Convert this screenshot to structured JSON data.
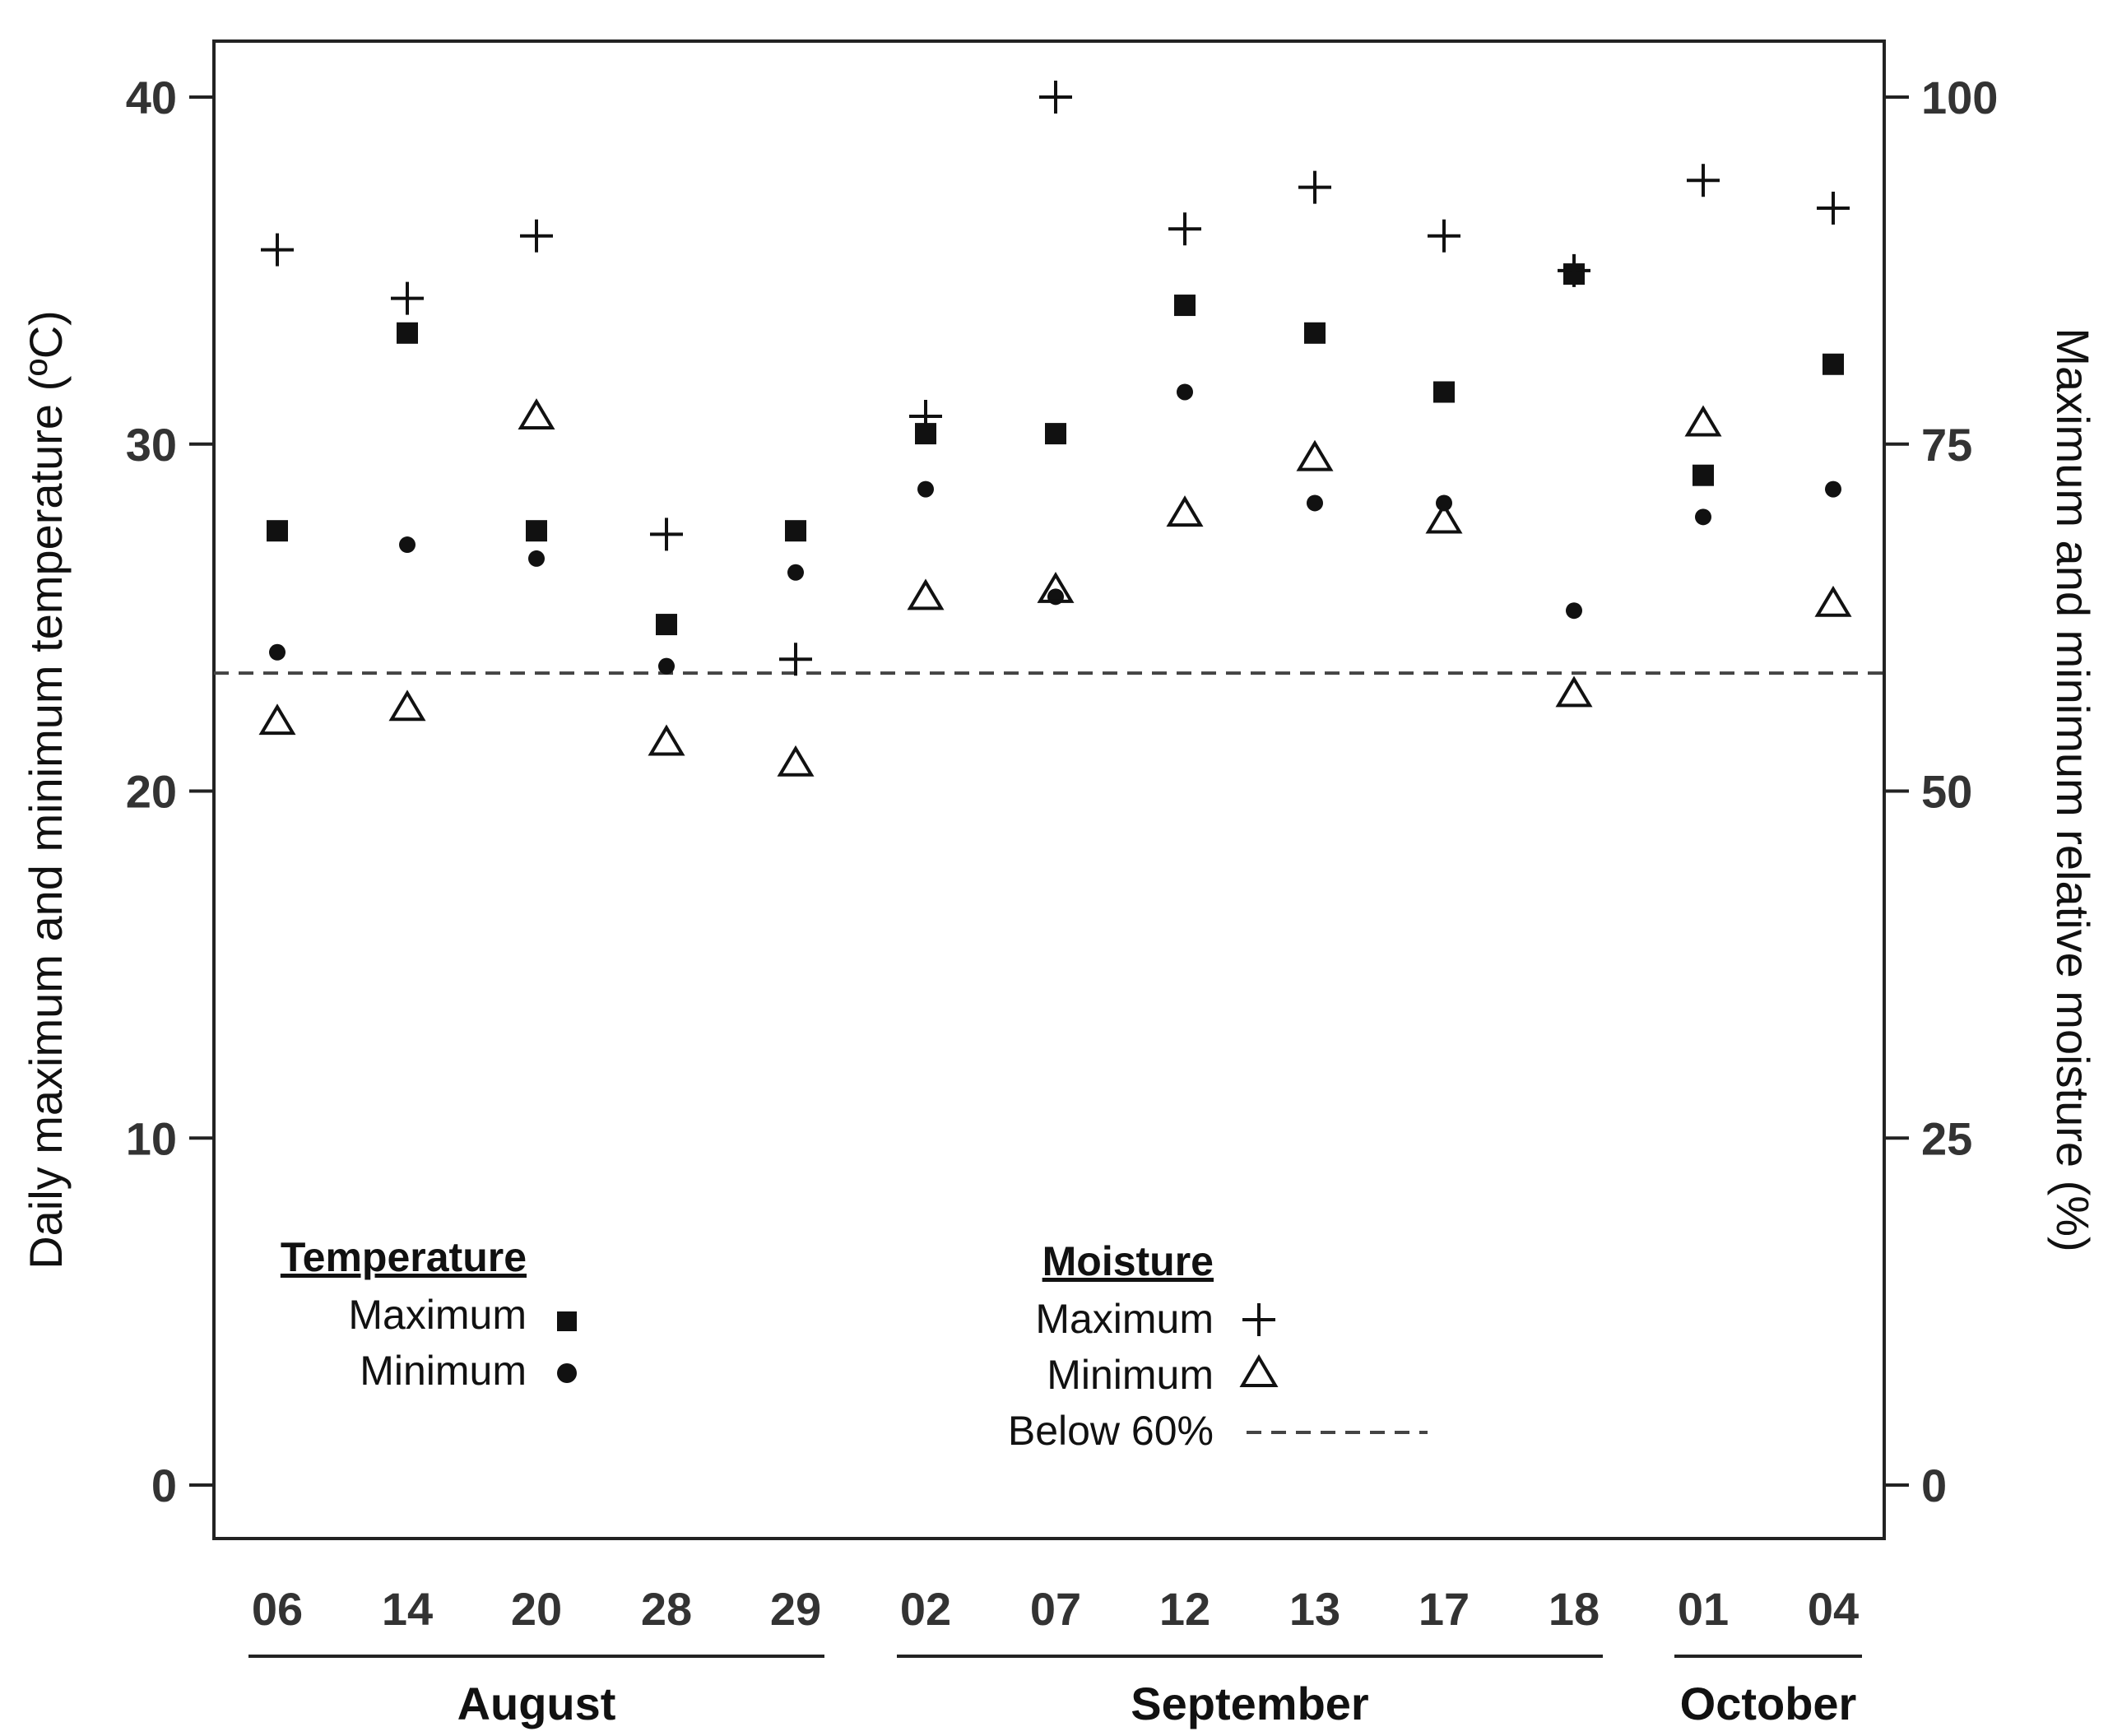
{
  "chart_data": {
    "type": "scatter",
    "title": "",
    "y_left": {
      "label": "Daily maximum and minimum temperature (ºC)",
      "range": [
        0,
        40
      ],
      "ticks": [
        "0",
        "10",
        "20",
        "30",
        "40"
      ]
    },
    "y_right": {
      "label": "Maximum and minimum relative moisture (%)",
      "range": [
        0,
        100
      ],
      "ticks": [
        "0",
        "25",
        "50",
        "75",
        "100"
      ]
    },
    "categories": [
      "06",
      "14",
      "20",
      "28",
      "29",
      "02",
      "07",
      "12",
      "13",
      "17",
      "18",
      "01",
      "04"
    ],
    "month_groups": [
      {
        "name": "August",
        "from": 0,
        "to": 4
      },
      {
        "name": "September",
        "from": 5,
        "to": 10
      },
      {
        "name": "October",
        "from": 11,
        "to": 12
      }
    ],
    "series": [
      {
        "name": "Maximum",
        "group": "Temperature",
        "axis": "left",
        "marker": "square",
        "values": [
          27.5,
          33.2,
          27.5,
          24.8,
          27.5,
          30.3,
          30.3,
          34.0,
          33.2,
          31.5,
          34.9,
          29.1,
          32.3
        ]
      },
      {
        "name": "Minimum",
        "group": "Temperature",
        "axis": "left",
        "marker": "circle",
        "values": [
          24.0,
          27.1,
          26.7,
          23.6,
          26.3,
          28.7,
          25.6,
          31.5,
          28.3,
          28.3,
          25.2,
          27.9,
          28.7
        ]
      },
      {
        "name": "Maximum",
        "group": "Moisture",
        "axis": "right",
        "marker": "plus",
        "values": [
          89,
          85.5,
          90,
          68.5,
          59.5,
          77,
          100,
          90.5,
          93.5,
          90,
          87.5,
          94,
          92
        ]
      },
      {
        "name": "Minimum",
        "group": "Moisture",
        "axis": "right",
        "marker": "triangle",
        "values": [
          55,
          56,
          77,
          53.5,
          52,
          64,
          64.5,
          70,
          74,
          69.5,
          57,
          76.5,
          63.5
        ]
      }
    ],
    "reference_line": {
      "label": "Below 60%",
      "axis": "right",
      "value": 58.5,
      "style": "dashed"
    },
    "legend": {
      "temperature_title": "Temperature",
      "temperature_items": [
        "Maximum",
        "Minimum"
      ],
      "moisture_title": "Moisture",
      "moisture_items": [
        "Maximum",
        "Minimum",
        "Below 60%"
      ]
    },
    "grid": false
  }
}
